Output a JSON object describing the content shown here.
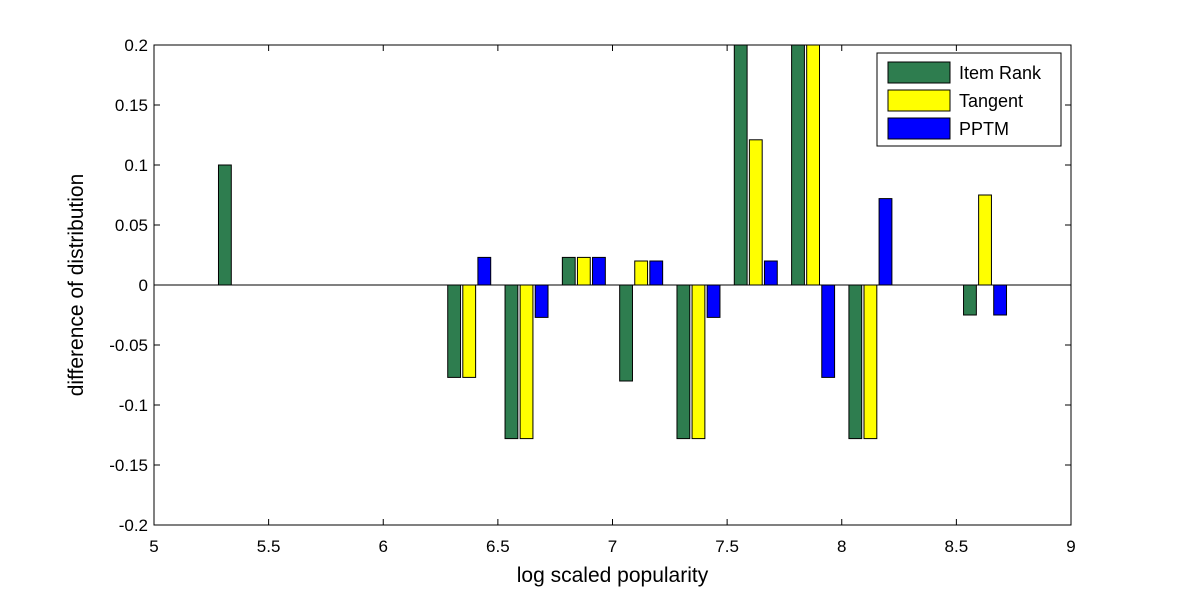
{
  "chart_data": {
    "type": "bar",
    "xlabel": "log scaled popularity",
    "ylabel": "difference of distribution",
    "xlim": [
      5,
      9
    ],
    "ylim": [
      -0.2,
      0.2
    ],
    "xticks": [
      5,
      5.5,
      6,
      6.5,
      7,
      7.5,
      8,
      8.5,
      9
    ],
    "yticks": [
      -0.2,
      -0.15,
      -0.1,
      -0.05,
      0,
      0.05,
      0.1,
      0.15,
      0.2
    ],
    "xtick_labels": [
      "5",
      "5.5",
      "6",
      "6.5",
      "7",
      "7.5",
      "8",
      "8.5",
      "9"
    ],
    "ytick_labels": [
      "-0.2",
      "-0.15",
      "-0.1",
      "-0.05",
      "0",
      "0.05",
      "0.1",
      "0.15",
      "0.2"
    ],
    "bin_width": 0.25,
    "categories": [
      5.375,
      5.625,
      5.875,
      6.125,
      6.375,
      6.625,
      6.875,
      7.125,
      7.375,
      7.625,
      7.875,
      8.125,
      8.375,
      8.625
    ],
    "series": [
      {
        "name": "Item Rank",
        "color": "#2e7d4f",
        "values": [
          0.1,
          0,
          0,
          0,
          -0.077,
          -0.128,
          0.023,
          -0.08,
          -0.128,
          0.2,
          0.2,
          -0.128,
          0,
          -0.025
        ]
      },
      {
        "name": "Tangent",
        "color": "#ffff00",
        "values": [
          0,
          0,
          0,
          0,
          -0.077,
          -0.128,
          0.023,
          0.02,
          -0.128,
          0.121,
          0.2,
          -0.128,
          0,
          0.075
        ]
      },
      {
        "name": "PPTM",
        "color": "#0000ff",
        "values": [
          0,
          0,
          0,
          0,
          0.023,
          -0.027,
          0.023,
          0.02,
          -0.027,
          0.02,
          -0.077,
          0.072,
          0,
          -0.025
        ]
      }
    ],
    "legend": {
      "position": "top-right"
    },
    "grid": false
  }
}
